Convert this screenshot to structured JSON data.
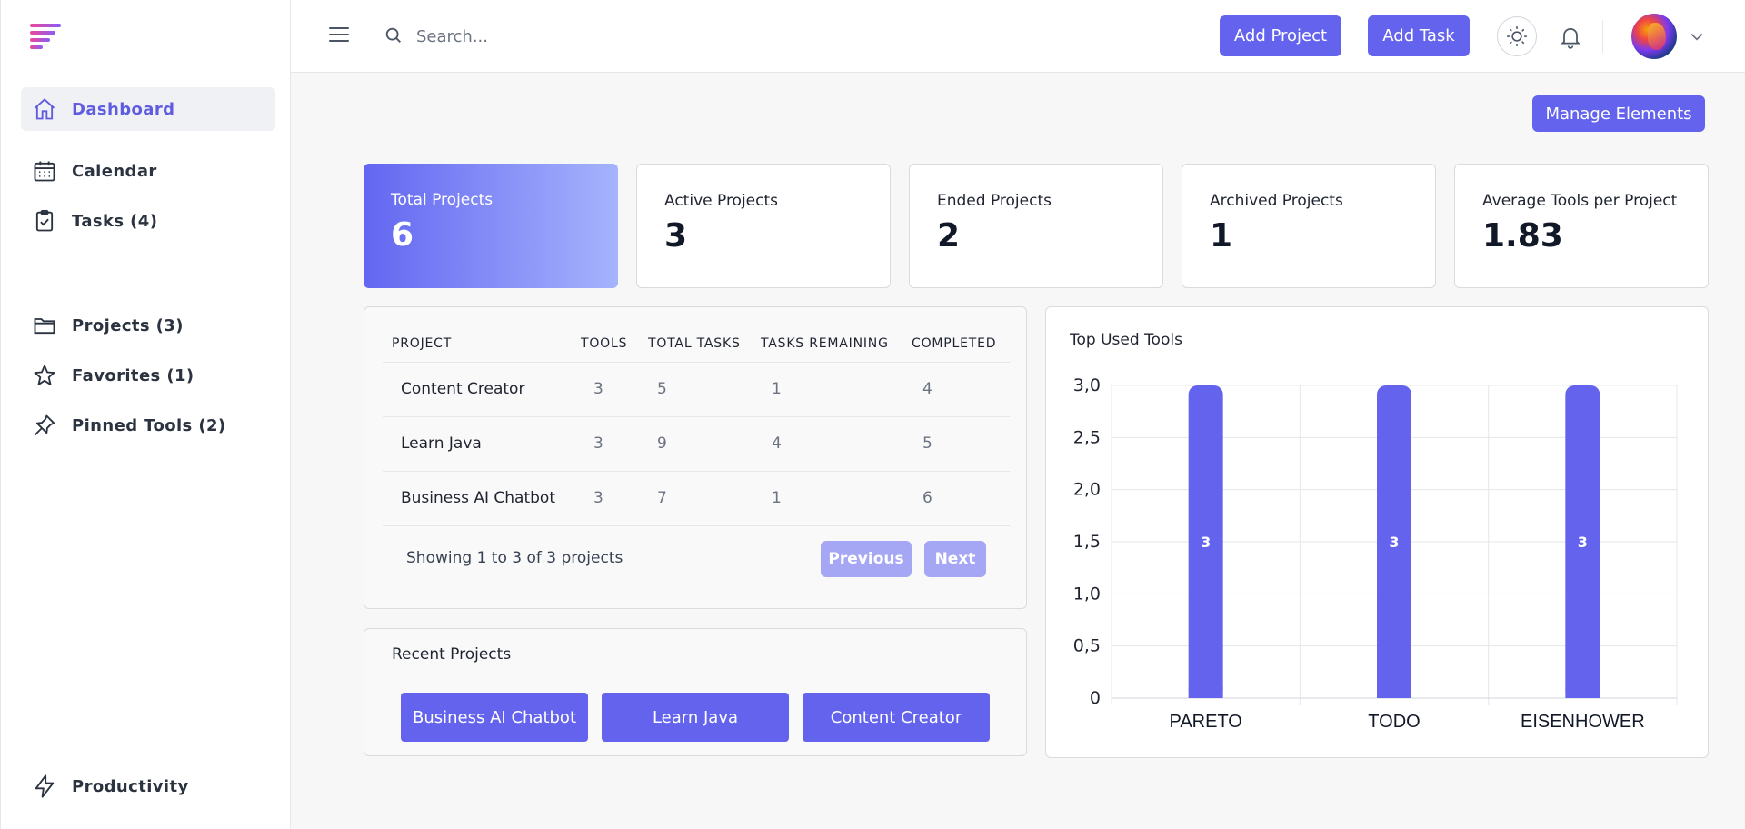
{
  "sidebar": {
    "items": [
      {
        "label": "Dashboard",
        "icon": "home-icon",
        "active": true
      },
      {
        "label": "Calendar",
        "icon": "calendar-icon"
      },
      {
        "label": "Tasks (4)",
        "icon": "clipboard-check-icon"
      },
      {
        "label": "Projects (3)",
        "icon": "folder-icon"
      },
      {
        "label": "Favorites (1)",
        "icon": "star-icon"
      },
      {
        "label": "Pinned Tools (2)",
        "icon": "pin-icon"
      }
    ],
    "footer": {
      "label": "Productivity",
      "icon": "lightning-icon"
    }
  },
  "header": {
    "search_placeholder": "Search...",
    "add_project_label": "Add Project",
    "add_task_label": "Add Task"
  },
  "manage_label": "Manage Elements",
  "stats": [
    {
      "label": "Total Projects",
      "value": "6"
    },
    {
      "label": "Active Projects",
      "value": "3"
    },
    {
      "label": "Ended Projects",
      "value": "2"
    },
    {
      "label": "Archived Projects",
      "value": "1"
    },
    {
      "label": "Average Tools per Project",
      "value": "1.83"
    }
  ],
  "projects_table": {
    "headers": [
      "PROJECT",
      "TOOLS",
      "TOTAL TASKS",
      "TASKS REMAINING",
      "COMPLETED"
    ],
    "rows": [
      [
        "Content Creator",
        "3",
        "5",
        "1",
        "4"
      ],
      [
        "Learn Java",
        "3",
        "9",
        "4",
        "5"
      ],
      [
        "Business AI Chatbot",
        "3",
        "7",
        "1",
        "6"
      ]
    ],
    "showing_text": "Showing 1 to 3 of 3 projects",
    "previous_label": "Previous",
    "next_label": "Next"
  },
  "recent_projects": {
    "title": "Recent Projects",
    "items": [
      "Business AI Chatbot",
      "Learn Java",
      "Content Creator"
    ]
  },
  "accent_color": "#6363ee",
  "chart_data": {
    "type": "bar",
    "title": "Top Used Tools",
    "categories": [
      "PARETO",
      "TODO",
      "EISENHOWER"
    ],
    "values": [
      3,
      3,
      3
    ],
    "data_labels": [
      "3",
      "3",
      "3"
    ],
    "ylim": [
      0,
      3.0
    ],
    "yticks": [
      "0",
      "0,5",
      "1,0",
      "1,5",
      "2,0",
      "2,5",
      "3,0"
    ],
    "grid": true,
    "bar_color": "#6363ee"
  }
}
